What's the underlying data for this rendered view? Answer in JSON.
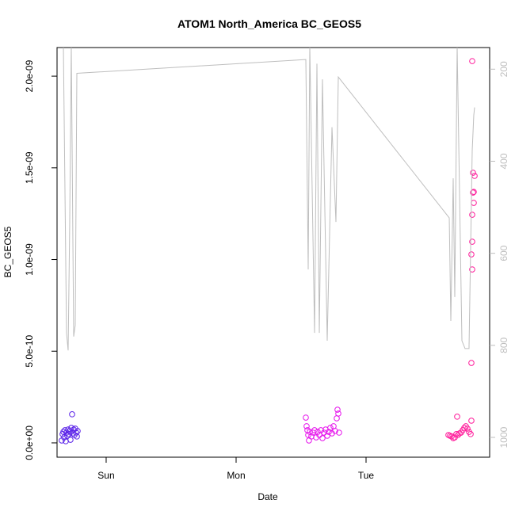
{
  "chart_data": {
    "type": "scatter",
    "title": "ATOM1 North_America BC_GEOS5",
    "x_label": "Date",
    "y_label": "BC_GEOS5",
    "xlim": [
      -9.07,
      70.83
    ],
    "xticks": [
      {
        "value": 0,
        "label": "Sun"
      },
      {
        "value": 24,
        "label": "Mon"
      },
      {
        "value": 48,
        "label": "Tue"
      }
    ],
    "ylim": [
      -7.8e-11,
      2.156e-09
    ],
    "yticks": [
      {
        "value": 0,
        "label": "0.0e+00"
      },
      {
        "value": 5e-10,
        "label": "5.0e-10"
      },
      {
        "value": 1e-09,
        "label": "1.0e-09"
      },
      {
        "value": 1.5e-09,
        "label": "1.5e-09"
      },
      {
        "value": 2e-09,
        "label": "2.0e-09"
      }
    ],
    "y2lim": [
      1043,
      153
    ],
    "y2ticks": [
      200,
      400,
      600,
      800,
      1000
    ],
    "series": [
      {
        "color": "#5a22e8",
        "x": [
          -8.2,
          -8.05,
          -7.9,
          -7.76,
          -7.61,
          -7.46,
          -7.32,
          -7.17,
          -7.02,
          -6.88,
          -6.73,
          -6.59,
          -6.44,
          -6.29,
          -6.15,
          -6.0,
          -5.85,
          -5.71,
          -5.56,
          -5.41,
          -5.27
        ],
        "values": [
          1.3e-11,
          4.8e-11,
          6e-11,
          3e-11,
          6.9e-11,
          9e-12,
          5.6e-11,
          3.9e-11,
          7.3e-11,
          4.8e-11,
          6.5e-11,
          1.7e-11,
          8.2e-11,
          1.56e-10,
          5.2e-11,
          7.3e-11,
          4.3e-11,
          7.8e-11,
          5.6e-11,
          3.5e-11,
          6.5e-11
        ]
      },
      {
        "color": "#e614ec",
        "x": [
          36.88,
          37.02,
          37.17,
          37.32,
          37.46,
          37.61,
          37.9,
          38.2,
          38.49,
          38.78,
          39.07,
          39.37,
          39.66,
          39.95,
          40.24,
          40.54,
          40.83,
          41.12,
          41.41,
          41.71,
          42.0,
          42.29,
          42.59,
          42.73,
          42.88,
          43.02
        ],
        "values": [
          1.38e-10,
          9.1e-11,
          6.9e-11,
          4.3e-11,
          1.3e-11,
          6e-11,
          3.5e-11,
          5.6e-11,
          6.9e-11,
          3e-11,
          6e-11,
          4.3e-11,
          6.9e-11,
          2.6e-11,
          5.6e-11,
          7.3e-11,
          3.9e-11,
          6e-11,
          8.2e-11,
          5.2e-11,
          9.1e-11,
          6.5e-11,
          1.34e-10,
          1.81e-10,
          1.6e-10,
          5.6e-11
        ]
      },
      {
        "color": "#ff1a9a",
        "x": [
          63.22,
          63.51,
          63.8,
          64.1,
          64.39,
          64.68,
          64.83,
          64.98,
          65.27,
          65.56,
          65.85,
          66.15,
          66.44,
          66.73,
          67.02,
          67.32,
          67.46,
          67.46,
          67.61,
          67.46,
          67.61,
          67.76,
          67.9,
          67.61,
          67.76,
          67.9,
          68.05,
          67.61
        ],
        "values": [
          4.3e-11,
          3.9e-11,
          3.5e-11,
          2.6e-11,
          3e-11,
          4.8e-11,
          1.43e-10,
          4.3e-11,
          5.2e-11,
          5.6e-11,
          6.9e-11,
          8.2e-11,
          9.1e-11,
          7.8e-11,
          6e-11,
          4.8e-11,
          1.21e-10,
          4.36e-10,
          9.46e-10,
          1.028e-09,
          1.097e-09,
          1.365e-09,
          1.369e-09,
          1.244e-09,
          1.473e-09,
          1.309e-09,
          1.456e-09,
          2.082e-09
        ]
      },
      {
        "type": "line",
        "axis": "y2",
        "color": "#bebebe",
        "x": [
          -7.9,
          -7.32,
          -7.02,
          -6.73,
          -6.44,
          -6.0,
          -5.71,
          -5.41,
          36.88,
          37.32,
          37.61,
          38.49,
          38.93,
          39.37,
          39.95,
          40.83,
          41.71,
          42.44,
          42.88,
          63.37,
          63.66,
          64.1,
          64.39,
          64.83,
          65.71,
          66.29,
          67.02,
          67.61,
          67.9,
          68.05
        ],
        "values": [
          150,
          773,
          811,
          532,
          150,
          781,
          756,
          209,
          179,
          635,
          150,
          773,
          188,
          773,
          222,
          790,
          326,
          532,
          217,
          523,
          747,
          437,
          695,
          150,
          790,
          807,
          807,
          377,
          300,
          283
        ]
      }
    ]
  }
}
